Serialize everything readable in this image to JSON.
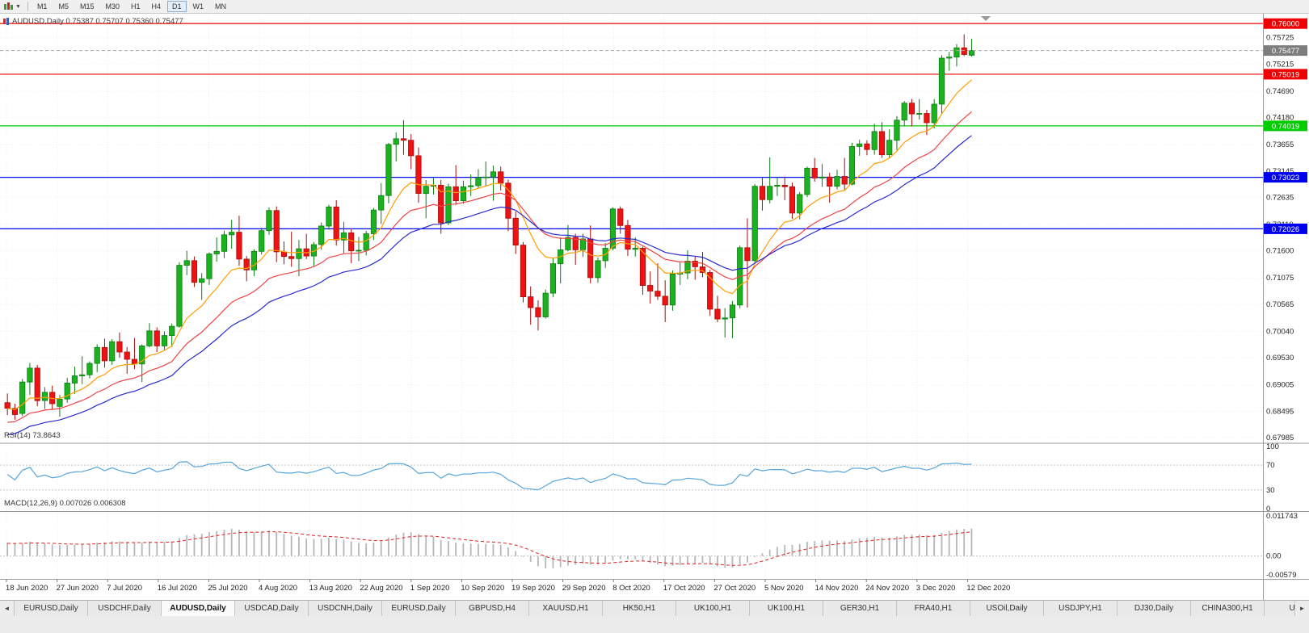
{
  "toolbar": {
    "timeframes": [
      "M1",
      "M5",
      "M15",
      "M30",
      "H1",
      "H4",
      "D1",
      "W1",
      "MN"
    ],
    "active": "D1"
  },
  "chart": {
    "title_line": "AUDUSD,Daily 0.75387 0.75707 0.75360 0.75477",
    "symbol": "AUDUSD",
    "timeframe": "Daily"
  },
  "indicators": {
    "rsi": {
      "label_full": "RSI(14) 73.8643",
      "name": "RSI",
      "period": "14",
      "value": "73.8643",
      "axis_labels": [
        "100",
        "70",
        "30",
        "0"
      ],
      "guide_levels": [
        70,
        30
      ],
      "color": "#57a5dc"
    },
    "macd": {
      "label_full": "MACD(12,26,9) 0.007026 0.006308",
      "name": "MACD",
      "params": "12,26,9",
      "main_value": "0.007026",
      "signal_value": "0.006308",
      "axis_labels": [
        "0.011743",
        "0.00",
        "-0.00579"
      ],
      "scale_max": 0.011743,
      "scale_min": -0.00579,
      "histogram_color": "#b7b7b7",
      "signal_color": "#e01f1f"
    }
  },
  "tabs": {
    "left_arrow": "◄",
    "right_arrow": "►",
    "items": [
      {
        "label": "EURUSD,Daily",
        "active": false
      },
      {
        "label": "USDCHF,Daily",
        "active": false
      },
      {
        "label": "AUDUSD,Daily",
        "active": true
      },
      {
        "label": "USDCAD,Daily",
        "active": false
      },
      {
        "label": "USDCNH,Daily",
        "active": false
      },
      {
        "label": "EURUSD,Daily",
        "active": false
      },
      {
        "label": "GBPUSD,H4",
        "active": false
      },
      {
        "label": "XAUUSD,H1",
        "active": false
      },
      {
        "label": "HK50,H1",
        "active": false
      },
      {
        "label": "UK100,H1",
        "active": false
      },
      {
        "label": "UK100,H1",
        "active": false
      },
      {
        "label": "GER30,H1",
        "active": false
      },
      {
        "label": "FRA40,H1",
        "active": false
      },
      {
        "label": "USOil,Daily",
        "active": false
      },
      {
        "label": "USDJPY,H1",
        "active": false
      },
      {
        "label": "DJ30,Daily",
        "active": false
      },
      {
        "label": "CHINA300,H1",
        "active": false
      },
      {
        "label": "USOil,",
        "active": false
      }
    ]
  },
  "chart_data": {
    "type": "candlestick",
    "symbol": "AUDUSD",
    "timeframe": "Daily",
    "ohlc": {
      "open": "0.75387",
      "high": "0.75707",
      "low": "0.75360",
      "close": "0.75477"
    },
    "last_price": 0.75477,
    "last_price_label": "0.75477",
    "price_range": [
      0.6789,
      0.7619
    ],
    "price_axis_labels": [
      "0.75725",
      "0.75215",
      "0.74690",
      "0.74180",
      "0.73655",
      "0.73145",
      "0.72635",
      "0.72110",
      "0.71600",
      "0.71075",
      "0.70565",
      "0.70040",
      "0.69530",
      "0.69005",
      "0.68495",
      "0.67985"
    ],
    "x_tick_labels": [
      "18 Jun 2020",
      "27 Jun 2020",
      "7 Jul 2020",
      "16 Jul 2020",
      "25 Jul 2020",
      "4 Aug 2020",
      "13 Aug 2020",
      "22 Aug 2020",
      "1 Sep 2020",
      "10 Sep 2020",
      "19 Sep 2020",
      "29 Sep 2020",
      "8 Oct 2020",
      "17 Oct 2020",
      "27 Oct 2020",
      "5 Nov 2020",
      "14 Nov 2020",
      "24 Nov 2020",
      "3 Dec 2020",
      "12 Dec 2020"
    ],
    "horizontal_lines": [
      {
        "price": 0.76,
        "label": "0.76000",
        "color": "#f00000"
      },
      {
        "price": 0.75019,
        "label": "0.75019",
        "color": "#f00000"
      },
      {
        "price": 0.74019,
        "label": "0.74019",
        "color": "#00cc00"
      },
      {
        "price": 0.73023,
        "label": "0.73023",
        "color": "#0000f0"
      },
      {
        "price": 0.72026,
        "label": "0.72026",
        "color": "#0000f0"
      }
    ],
    "moving_averages": [
      {
        "name": "fast",
        "period": 10,
        "color": "#ff9d00",
        "seed_offset": 0
      },
      {
        "name": "mid",
        "period": 20,
        "color": "#f04343",
        "seed_offset": -0.003
      },
      {
        "name": "slow",
        "period": 30,
        "color": "#2a2ad2",
        "seed_offset": -0.0055
      }
    ],
    "candle_colors": {
      "up_fill": "#1cb11f",
      "up_border": "#0d7d12",
      "down_fill": "#ee1212",
      "down_border": "#a50d0d"
    },
    "candles": [
      [
        0.6866,
        0.6884,
        0.6842,
        0.6855
      ],
      [
        0.6855,
        0.6864,
        0.6833,
        0.6843
      ],
      [
        0.6845,
        0.6912,
        0.684,
        0.6906
      ],
      [
        0.6906,
        0.6943,
        0.6881,
        0.6933
      ],
      [
        0.6933,
        0.6939,
        0.6859,
        0.687
      ],
      [
        0.687,
        0.6896,
        0.6854,
        0.6886
      ],
      [
        0.6886,
        0.6899,
        0.6852,
        0.6864
      ],
      [
        0.6859,
        0.6881,
        0.6839,
        0.6873
      ],
      [
        0.6873,
        0.6914,
        0.6866,
        0.6904
      ],
      [
        0.6904,
        0.6936,
        0.6883,
        0.6918
      ],
      [
        0.6918,
        0.6956,
        0.6902,
        0.692
      ],
      [
        0.692,
        0.6946,
        0.6913,
        0.6942
      ],
      [
        0.6942,
        0.6979,
        0.6925,
        0.6973
      ],
      [
        0.6973,
        0.699,
        0.6934,
        0.6947
      ],
      [
        0.6947,
        0.6989,
        0.6939,
        0.6984
      ],
      [
        0.6984,
        0.7002,
        0.6953,
        0.6964
      ],
      [
        0.6964,
        0.6974,
        0.6922,
        0.695
      ],
      [
        0.695,
        0.6991,
        0.6931,
        0.6941
      ],
      [
        0.6941,
        0.6979,
        0.6906,
        0.6976
      ],
      [
        0.6976,
        0.702,
        0.6973,
        0.7005
      ],
      [
        0.7005,
        0.7012,
        0.6964,
        0.6976
      ],
      [
        0.6976,
        0.7004,
        0.6967,
        0.6996
      ],
      [
        0.6996,
        0.7019,
        0.6974,
        0.7014
      ],
      [
        0.7014,
        0.7138,
        0.7011,
        0.7132
      ],
      [
        0.7132,
        0.716,
        0.7113,
        0.7141
      ],
      [
        0.7141,
        0.7149,
        0.709,
        0.7099
      ],
      [
        0.7099,
        0.7117,
        0.7065,
        0.7106
      ],
      [
        0.7106,
        0.7157,
        0.7094,
        0.7154
      ],
      [
        0.7154,
        0.7186,
        0.7139,
        0.7159
      ],
      [
        0.7159,
        0.7199,
        0.7146,
        0.7191
      ],
      [
        0.7191,
        0.722,
        0.7164,
        0.7196
      ],
      [
        0.7196,
        0.7228,
        0.7131,
        0.7144
      ],
      [
        0.7144,
        0.715,
        0.7101,
        0.7123
      ],
      [
        0.7123,
        0.7163,
        0.7111,
        0.7159
      ],
      [
        0.7159,
        0.7205,
        0.7153,
        0.7199
      ],
      [
        0.7199,
        0.7244,
        0.7191,
        0.7238
      ],
      [
        0.7238,
        0.7246,
        0.7138,
        0.7158
      ],
      [
        0.7158,
        0.7178,
        0.7134,
        0.7149
      ],
      [
        0.7149,
        0.7197,
        0.7129,
        0.7145
      ],
      [
        0.7145,
        0.7181,
        0.7111,
        0.7164
      ],
      [
        0.7164,
        0.7193,
        0.7144,
        0.715
      ],
      [
        0.715,
        0.7177,
        0.7129,
        0.7172
      ],
      [
        0.7172,
        0.7215,
        0.7162,
        0.7208
      ],
      [
        0.7208,
        0.7249,
        0.7201,
        0.7245
      ],
      [
        0.7245,
        0.7258,
        0.717,
        0.7181
      ],
      [
        0.7181,
        0.7216,
        0.7156,
        0.7195
      ],
      [
        0.7195,
        0.7203,
        0.7136,
        0.716
      ],
      [
        0.716,
        0.7187,
        0.714,
        0.7161
      ],
      [
        0.7161,
        0.7199,
        0.7151,
        0.7193
      ],
      [
        0.7193,
        0.7243,
        0.7181,
        0.7239
      ],
      [
        0.7239,
        0.7291,
        0.7212,
        0.7267
      ],
      [
        0.7267,
        0.7369,
        0.7252,
        0.7366
      ],
      [
        0.7366,
        0.7389,
        0.7333,
        0.7377
      ],
      [
        0.7377,
        0.7413,
        0.7346,
        0.7374
      ],
      [
        0.7374,
        0.7386,
        0.7318,
        0.7344
      ],
      [
        0.7344,
        0.736,
        0.7253,
        0.7271
      ],
      [
        0.7271,
        0.7297,
        0.7223,
        0.7285
      ],
      [
        0.7285,
        0.7301,
        0.7269,
        0.7287
      ],
      [
        0.7287,
        0.7297,
        0.7193,
        0.7214
      ],
      [
        0.7214,
        0.729,
        0.721,
        0.7284
      ],
      [
        0.7284,
        0.7326,
        0.7249,
        0.7257
      ],
      [
        0.7257,
        0.7296,
        0.7251,
        0.7284
      ],
      [
        0.7284,
        0.7308,
        0.7266,
        0.7286
      ],
      [
        0.7286,
        0.7318,
        0.7281,
        0.7302
      ],
      [
        0.7302,
        0.7333,
        0.7286,
        0.7303
      ],
      [
        0.7303,
        0.7325,
        0.7257,
        0.7313
      ],
      [
        0.7313,
        0.7323,
        0.7277,
        0.7291
      ],
      [
        0.7291,
        0.7298,
        0.7198,
        0.7223
      ],
      [
        0.7223,
        0.7236,
        0.7154,
        0.7171
      ],
      [
        0.7171,
        0.7177,
        0.706,
        0.7071
      ],
      [
        0.7071,
        0.7091,
        0.7017,
        0.705
      ],
      [
        0.705,
        0.7064,
        0.7006,
        0.7032
      ],
      [
        0.7032,
        0.7085,
        0.7029,
        0.7078
      ],
      [
        0.7078,
        0.7146,
        0.707,
        0.7135
      ],
      [
        0.7135,
        0.7186,
        0.7097,
        0.7162
      ],
      [
        0.7162,
        0.721,
        0.7159,
        0.7186
      ],
      [
        0.7186,
        0.7193,
        0.7133,
        0.7162
      ],
      [
        0.7162,
        0.7193,
        0.7148,
        0.7183
      ],
      [
        0.7183,
        0.7209,
        0.7097,
        0.7108
      ],
      [
        0.7108,
        0.7147,
        0.7098,
        0.7141
      ],
      [
        0.7141,
        0.7175,
        0.7127,
        0.7165
      ],
      [
        0.7165,
        0.7244,
        0.7161,
        0.7241
      ],
      [
        0.7241,
        0.7246,
        0.7193,
        0.7209
      ],
      [
        0.7209,
        0.722,
        0.715,
        0.7163
      ],
      [
        0.7163,
        0.7186,
        0.7149,
        0.7165
      ],
      [
        0.7165,
        0.7168,
        0.7075,
        0.7093
      ],
      [
        0.7093,
        0.712,
        0.7058,
        0.7082
      ],
      [
        0.7082,
        0.7136,
        0.7065,
        0.7072
      ],
      [
        0.7072,
        0.7103,
        0.7022,
        0.7055
      ],
      [
        0.7055,
        0.7122,
        0.7044,
        0.7115
      ],
      [
        0.7115,
        0.7138,
        0.7094,
        0.7117
      ],
      [
        0.7117,
        0.7161,
        0.7105,
        0.714
      ],
      [
        0.714,
        0.7149,
        0.7104,
        0.7129
      ],
      [
        0.7129,
        0.7158,
        0.7109,
        0.7118
      ],
      [
        0.7118,
        0.7123,
        0.7034,
        0.7047
      ],
      [
        0.7047,
        0.7073,
        0.7022,
        0.7028
      ],
      [
        0.7028,
        0.7049,
        0.6992,
        0.703
      ],
      [
        0.703,
        0.7063,
        0.6991,
        0.7055
      ],
      [
        0.7055,
        0.717,
        0.7049,
        0.7166
      ],
      [
        0.7166,
        0.7223,
        0.705,
        0.7141
      ],
      [
        0.7141,
        0.7289,
        0.7138,
        0.7285
      ],
      [
        0.7285,
        0.7301,
        0.7238,
        0.7259
      ],
      [
        0.7259,
        0.7341,
        0.7252,
        0.7285
      ],
      [
        0.7285,
        0.7303,
        0.7266,
        0.7287
      ],
      [
        0.7287,
        0.7304,
        0.7258,
        0.7284
      ],
      [
        0.7284,
        0.7292,
        0.7222,
        0.7233
      ],
      [
        0.7233,
        0.7274,
        0.7221,
        0.7269
      ],
      [
        0.7269,
        0.7323,
        0.7264,
        0.732
      ],
      [
        0.732,
        0.734,
        0.7294,
        0.7301
      ],
      [
        0.7301,
        0.7328,
        0.7284,
        0.7303
      ],
      [
        0.7303,
        0.7311,
        0.7253,
        0.7285
      ],
      [
        0.7285,
        0.7317,
        0.7279,
        0.7304
      ],
      [
        0.7304,
        0.734,
        0.7278,
        0.7289
      ],
      [
        0.7289,
        0.7369,
        0.7287,
        0.7362
      ],
      [
        0.7362,
        0.7375,
        0.7344,
        0.7367
      ],
      [
        0.7367,
        0.7374,
        0.7345,
        0.7356
      ],
      [
        0.7356,
        0.7406,
        0.7346,
        0.7391
      ],
      [
        0.7391,
        0.7409,
        0.734,
        0.7346
      ],
      [
        0.7346,
        0.7395,
        0.7339,
        0.7374
      ],
      [
        0.7374,
        0.7421,
        0.7355,
        0.7413
      ],
      [
        0.7413,
        0.745,
        0.7401,
        0.7446
      ],
      [
        0.7446,
        0.7454,
        0.7401,
        0.7425
      ],
      [
        0.7425,
        0.7454,
        0.7414,
        0.7426
      ],
      [
        0.7426,
        0.7433,
        0.7384,
        0.7408
      ],
      [
        0.7408,
        0.7454,
        0.7397,
        0.7444
      ],
      [
        0.7444,
        0.7539,
        0.7426,
        0.7533
      ],
      [
        0.7533,
        0.7545,
        0.7509,
        0.7535
      ],
      [
        0.7535,
        0.756,
        0.7517,
        0.7553
      ],
      [
        0.7553,
        0.7579,
        0.7537,
        0.754
      ],
      [
        0.75387,
        0.75707,
        0.7536,
        0.75477
      ]
    ]
  }
}
